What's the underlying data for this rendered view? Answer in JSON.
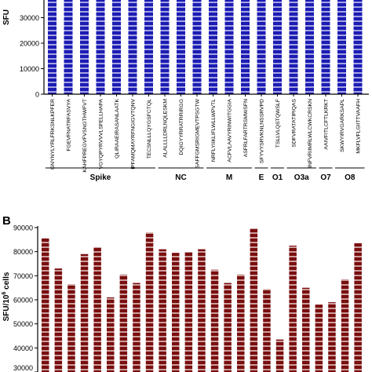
{
  "chart_data": [
    {
      "panel": "",
      "type": "bar",
      "ylabel": "SFU",
      "ylim": [
        0,
        40000
      ],
      "yticks": [
        0,
        10000,
        20000,
        30000,
        40000
      ],
      "grid": false,
      "bar_color": "#1c1cb4",
      "stripe_color": "#ffffff",
      "categories": [
        "GNYNYLYRLFRKSNLKPFER",
        "FGEVFNATRFASVYA",
        "KAHFPREGVFVSNGTHWFVT",
        "VGYQPYRVVVLSFELLHAPA",
        "QLIRAAEIRASANLAATK",
        "IPFAMQMAYRFNGIGVTQNV",
        "TECSNLLLQYGSFCTQL",
        "ALALLLLDRLNQLESKM",
        "DQIGYYRRATRRIRGG",
        "SAFFGMSRIGMEVTPSGTW",
        "NRFLYIIKLIFLWLLWPVTL",
        "ACFVLAAVYRINWITGGIA",
        "ASFRLFARTRSMWSFN",
        "SFYVYSRVKNLNSSRVPD",
        "TSLLVLQSTQWSLF",
        "SDFVRATATIPIQAS",
        "INFVRIIMRLWLCWKCRSKN",
        "AAIVFITLCFTLKRKT",
        "SKWYIRVGARKSAPL",
        "MKFLVFLGIITTVAAFH"
      ],
      "values": [
        40000,
        40000,
        40000,
        40000,
        40000,
        40000,
        40000,
        40000,
        40000,
        40000,
        40000,
        40000,
        40000,
        40000,
        40000,
        40000,
        40000,
        40000,
        40000,
        40000
      ],
      "groups": [
        {
          "label": "Spike",
          "start": 0,
          "end": 6
        },
        {
          "label": "NC",
          "start": 7,
          "end": 9
        },
        {
          "label": "M",
          "start": 10,
          "end": 12
        },
        {
          "label": "E",
          "start": 13,
          "end": 13
        },
        {
          "label": "O1",
          "start": 14,
          "end": 14
        },
        {
          "label": "O3a",
          "start": 15,
          "end": 16
        },
        {
          "label": "O7",
          "start": 17,
          "end": 17
        },
        {
          "label": "O8",
          "start": 18,
          "end": 19
        }
      ]
    },
    {
      "panel": "B",
      "type": "bar",
      "ylabel": "SFU/10",
      "ylabel_sup": "6",
      "ylabel_tail": " cells",
      "ylim": [
        30000,
        90000
      ],
      "yticks": [
        30000,
        40000,
        50000,
        60000,
        70000,
        80000,
        90000
      ],
      "grid": false,
      "bar_color": "#7a0e0e",
      "stripe_color": "#ffffff",
      "values": [
        85500,
        73000,
        66500,
        79000,
        82000,
        61000,
        70500,
        67000,
        88000,
        81000,
        79500,
        80000,
        81000,
        72500,
        67000,
        70500,
        89500,
        64500,
        43500,
        82500,
        65000,
        58000,
        59000,
        68500,
        83500
      ]
    }
  ]
}
